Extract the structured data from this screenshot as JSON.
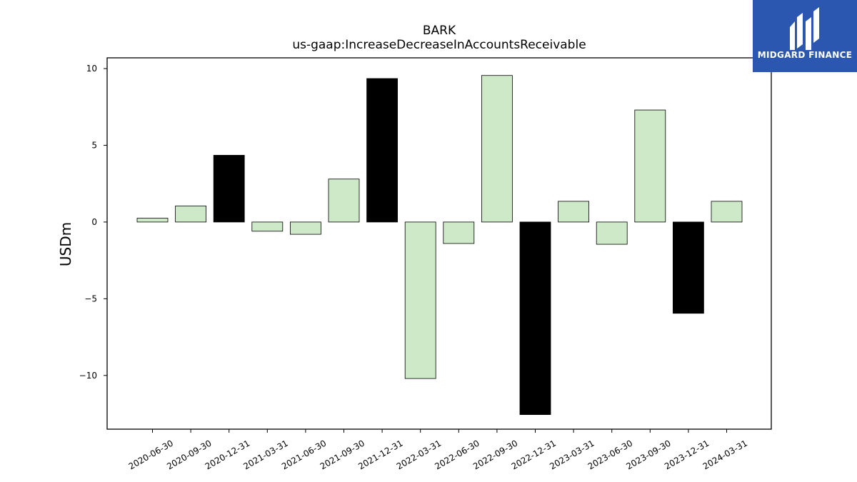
{
  "chart_data": {
    "type": "bar",
    "title": "BARK",
    "subtitle": "us-gaap:IncreaseDecreaseInAccountsReceivable",
    "xlabel": "",
    "ylabel": "USDm",
    "ylim": [
      -13.5,
      10.7
    ],
    "yticks": [
      10,
      5,
      0,
      -5,
      -10
    ],
    "ytick_labels": [
      "10",
      "5",
      "0",
      "−5",
      "−10"
    ],
    "grid": false,
    "categories": [
      "2020-06-30",
      "2020-09-30",
      "2020-12-31",
      "2021-03-31",
      "2021-06-30",
      "2021-09-30",
      "2021-12-31",
      "2022-03-31",
      "2022-06-30",
      "2022-09-30",
      "2022-12-31",
      "2023-03-31",
      "2023-06-30",
      "2023-09-30",
      "2023-12-31",
      "2024-03-31"
    ],
    "values": [
      0.25,
      1.05,
      4.35,
      -0.6,
      -0.8,
      2.8,
      9.35,
      -10.2,
      -1.4,
      9.55,
      -12.55,
      1.35,
      -1.45,
      7.3,
      -5.95,
      1.35
    ],
    "highlight": [
      false,
      false,
      true,
      false,
      false,
      false,
      true,
      false,
      false,
      false,
      true,
      false,
      false,
      false,
      true,
      false
    ],
    "colors": {
      "bar": "#cde9c7",
      "highlight_bar": "#000000",
      "edge": "#000000"
    }
  },
  "logo": {
    "text": "MIDGARD FINANCE",
    "background": "#2c57b0",
    "icon": "midgard-logo-icon"
  }
}
